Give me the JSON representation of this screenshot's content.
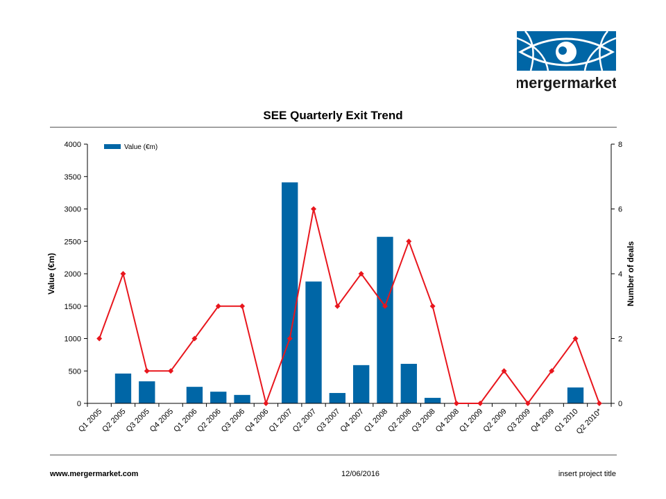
{
  "brand": {
    "name": "mergermarket",
    "colors": {
      "blue": "#0066A6",
      "white": "#ffffff",
      "text": "#1a1a1a"
    }
  },
  "footer": {
    "website": "www.mergermarket.com",
    "date": "12/06/2016",
    "project": "insert project title"
  },
  "chart_data": {
    "type": "bar",
    "title": "SEE Quarterly Exit Trend",
    "categories": [
      "Q1 2005",
      "Q2 2005",
      "Q3 2005",
      "Q4 2005",
      "Q1 2006",
      "Q2 2006",
      "Q3 2006",
      "Q4 2006",
      "Q1 2007",
      "Q2 2007",
      "Q3 2007",
      "Q4 2007",
      "Q1 2008",
      "Q2 2008",
      "Q3 2008",
      "Q4 2008",
      "Q1 2009",
      "Q2 2009",
      "Q3 2009",
      "Q4 2009",
      "Q1 2010",
      "Q2 2010*"
    ],
    "ylabel": "Value (€m)",
    "y2label": "Number of deals",
    "ylim": [
      0,
      4000
    ],
    "y2lim": [
      0,
      8
    ],
    "yticks": [
      0,
      500,
      1000,
      1500,
      2000,
      2500,
      3000,
      3500,
      4000
    ],
    "y2ticks": [
      0,
      2,
      4,
      6,
      8
    ],
    "grid": false,
    "legend": {
      "position": "top-left",
      "entries": [
        "Value (€m)"
      ]
    },
    "series": [
      {
        "name": "Value (€m)",
        "type": "bar",
        "axis": "left",
        "color": "#0066A6",
        "values": [
          0,
          460,
          340,
          0,
          255,
          180,
          130,
          0,
          3410,
          1880,
          160,
          590,
          2570,
          610,
          85,
          0,
          0,
          0,
          0,
          0,
          245,
          0
        ]
      },
      {
        "type": "line",
        "axis": "right",
        "color": "#E8161D",
        "values": [
          2,
          4,
          1,
          1,
          2,
          3,
          3,
          0,
          2,
          6,
          3,
          4,
          3,
          5,
          3,
          0,
          0,
          1,
          0,
          1,
          2,
          0
        ]
      }
    ]
  }
}
